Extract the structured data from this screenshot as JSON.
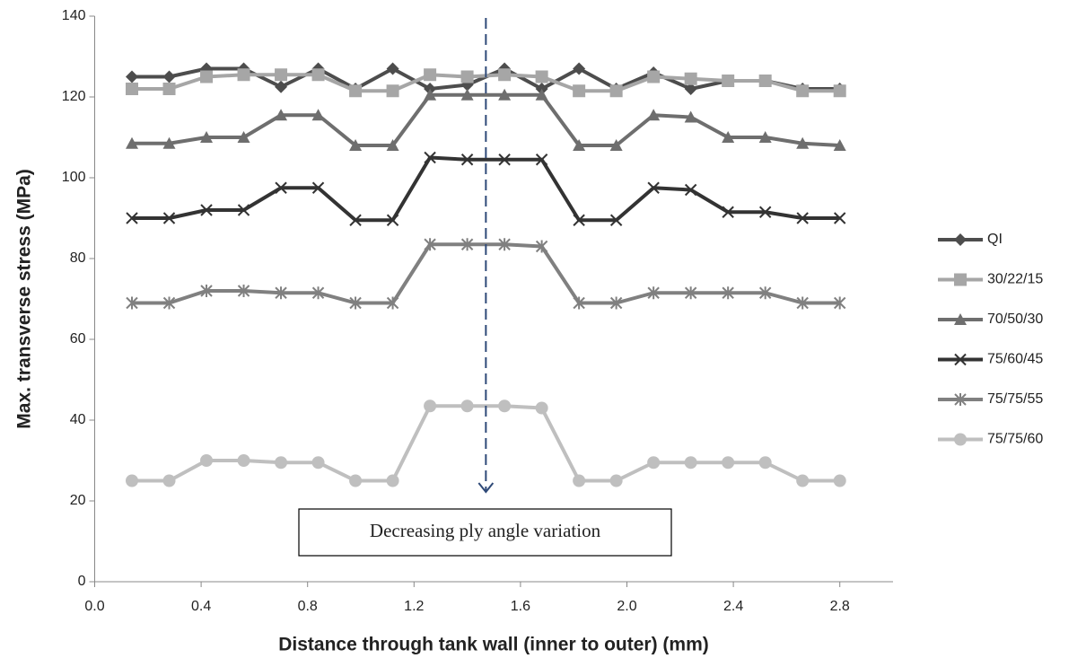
{
  "chart_data": {
    "type": "line",
    "x_label": "Distance through tank wall (inner to outer) (mm)",
    "y_label": "Max. transverse stress (MPa)",
    "annotation": "Decreasing ply angle variation",
    "annotation_arrow_x": 1.47,
    "x": [
      0.14,
      0.28,
      0.42,
      0.56,
      0.7,
      0.84,
      0.98,
      1.12,
      1.26,
      1.4,
      1.54,
      1.68,
      1.82,
      1.96,
      2.1,
      2.24,
      2.38,
      2.52,
      2.66,
      2.8
    ],
    "xlim": [
      0,
      3
    ],
    "xticks": [
      {
        "value": 0,
        "label": "0.0"
      },
      0.4,
      0.8,
      1.2,
      1.6,
      {
        "value": 2,
        "label": "2.0"
      },
      2.4,
      2.8
    ],
    "ylim": [
      0,
      140
    ],
    "yticks": [
      0,
      20,
      40,
      60,
      80,
      100,
      120,
      140
    ],
    "grid": false,
    "legend": "right",
    "series": [
      {
        "name": "QI",
        "color": "#4d4d4d",
        "marker": "diamond",
        "values": [
          125,
          125,
          127,
          127,
          122.5,
          127,
          122,
          127,
          122,
          123,
          127,
          122,
          127,
          122,
          126,
          122,
          124,
          124,
          122,
          122
        ]
      },
      {
        "name": "30/22/15",
        "color": "#a6a6a6",
        "marker": "square",
        "values": [
          122,
          122,
          125,
          125.5,
          125.5,
          125.5,
          121.5,
          121.5,
          125.5,
          125,
          125.5,
          125,
          121.5,
          121.5,
          125,
          124.5,
          124,
          124,
          121.5,
          121.5
        ]
      },
      {
        "name": "70/50/30",
        "color": "#6e6e6e",
        "marker": "triangle",
        "values": [
          108.5,
          108.5,
          110,
          110,
          115.5,
          115.5,
          108,
          108,
          120.5,
          120.5,
          120.5,
          120.5,
          108,
          108,
          115.5,
          115,
          110,
          110,
          108.5,
          108
        ]
      },
      {
        "name": "75/60/45",
        "color": "#333333",
        "marker": "cross",
        "values": [
          90,
          90,
          92,
          92,
          97.5,
          97.5,
          89.5,
          89.5,
          105,
          104.5,
          104.5,
          104.5,
          89.5,
          89.5,
          97.5,
          97,
          91.5,
          91.5,
          90,
          90
        ]
      },
      {
        "name": "75/75/55",
        "color": "#808080",
        "marker": "star",
        "values": [
          69,
          69,
          72,
          72,
          71.5,
          71.5,
          69,
          69,
          83.5,
          83.5,
          83.5,
          83,
          69,
          69,
          71.5,
          71.5,
          71.5,
          71.5,
          69,
          69
        ]
      },
      {
        "name": "75/75/60",
        "color": "#bfbfbf",
        "marker": "circle",
        "values": [
          25,
          25,
          30,
          30,
          29.5,
          29.5,
          25,
          25,
          43.5,
          43.5,
          43.5,
          43,
          25,
          25,
          29.5,
          29.5,
          29.5,
          29.5,
          25,
          25
        ]
      }
    ]
  }
}
